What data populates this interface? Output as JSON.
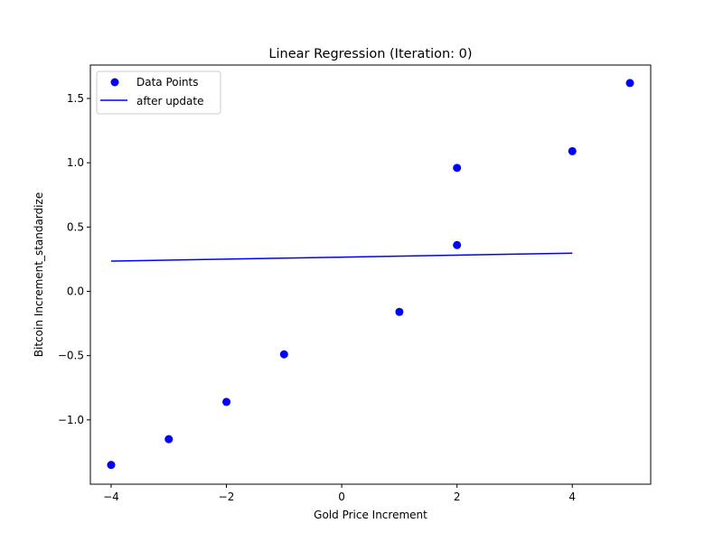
{
  "chart_data": {
    "type": "scatter",
    "title": "Linear Regression (Iteration: 0)",
    "xlabel": "Gold Price Increment",
    "ylabel": "Bitcoin Increment_standardize",
    "xlim": [
      -4.36,
      5.36
    ],
    "ylim": [
      -1.5,
      1.76
    ],
    "xticks": [
      -4,
      -2,
      0,
      2,
      4
    ],
    "xtick_labels": [
      "−4",
      "−2",
      "0",
      "2",
      "4"
    ],
    "yticks": [
      -1.0,
      -0.5,
      0.0,
      0.5,
      1.0,
      1.5
    ],
    "ytick_labels": [
      "−1.0",
      "−0.5",
      "0.0",
      "0.5",
      "1.0",
      "1.5"
    ],
    "grid": false,
    "legend_position": "upper-left",
    "series": [
      {
        "name": "Data Points",
        "kind": "scatter",
        "color": "#0000ff",
        "points": [
          {
            "x": -4,
            "y": -1.35
          },
          {
            "x": -3,
            "y": -1.15
          },
          {
            "x": -2,
            "y": -0.86
          },
          {
            "x": -1,
            "y": -0.49
          },
          {
            "x": 1,
            "y": -0.16
          },
          {
            "x": 2,
            "y": 0.36
          },
          {
            "x": 2,
            "y": 0.96
          },
          {
            "x": 4,
            "y": 1.09
          },
          {
            "x": 5,
            "y": 1.62
          }
        ]
      },
      {
        "name": "after update",
        "kind": "line",
        "color": "#0000ff",
        "points": [
          {
            "x": -4,
            "y": 0.235
          },
          {
            "x": 4,
            "y": 0.297
          }
        ]
      }
    ]
  }
}
